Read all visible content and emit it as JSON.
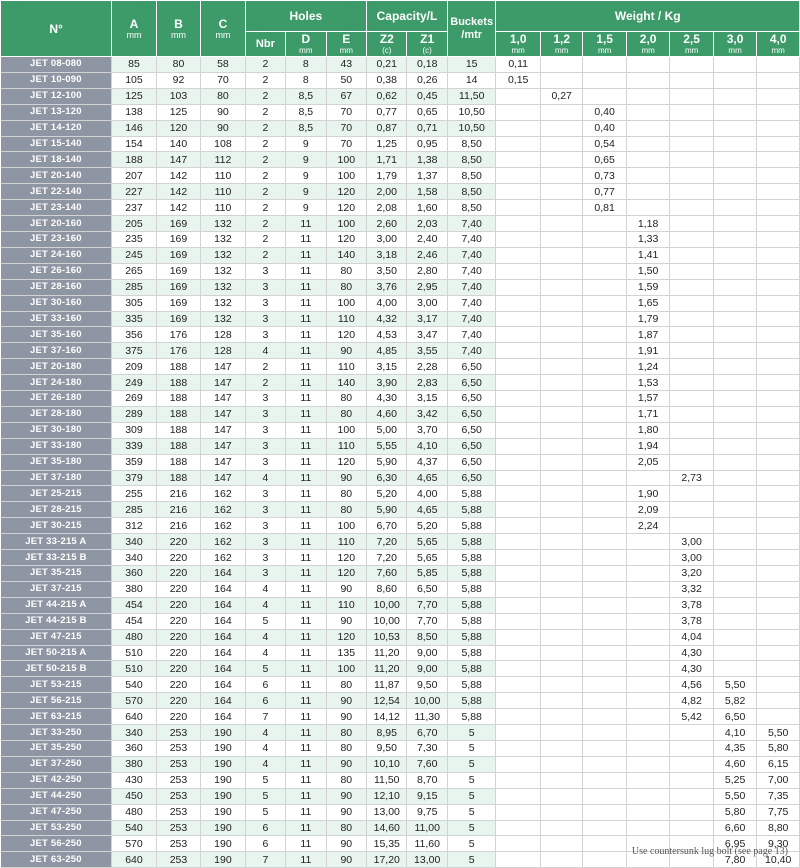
{
  "headers": {
    "no": "N°",
    "a": {
      "label": "A",
      "unit": "mm"
    },
    "b": {
      "label": "B",
      "unit": "mm"
    },
    "c": {
      "label": "C",
      "unit": "mm"
    },
    "holes": "Holes",
    "capacity": "Capacity/L",
    "buckets": "Buckets /mtr",
    "weight": "Weight / Kg",
    "nbr": "Nbr",
    "d": {
      "label": "D",
      "unit": "mm"
    },
    "e": {
      "label": "E",
      "unit": "mm"
    },
    "z2": {
      "label": "Z2",
      "unit": "(c)"
    },
    "z1": {
      "label": "Z1",
      "unit": "(c)"
    },
    "w10": {
      "label": "1,0",
      "unit": "mm"
    },
    "w12": {
      "label": "1,2",
      "unit": "mm"
    },
    "w15": {
      "label": "1,5",
      "unit": "mm"
    },
    "w20": {
      "label": "2,0",
      "unit": "mm"
    },
    "w25": {
      "label": "2,5",
      "unit": "mm"
    },
    "w30": {
      "label": "3,0",
      "unit": "mm"
    },
    "w40": {
      "label": "4,0",
      "unit": "mm"
    }
  },
  "rows": [
    [
      "JET 08-080",
      "85",
      "80",
      "58",
      "2",
      "8",
      "43",
      "0,21",
      "0,18",
      "15",
      "0,11",
      "",
      "",
      "",
      "",
      "",
      ""
    ],
    [
      "JET 10-090",
      "105",
      "92",
      "70",
      "2",
      "8",
      "50",
      "0,38",
      "0,26",
      "14",
      "0,15",
      "",
      "",
      "",
      "",
      "",
      ""
    ],
    [
      "JET 12-100",
      "125",
      "103",
      "80",
      "2",
      "8,5",
      "67",
      "0,62",
      "0,45",
      "11,50",
      "",
      "0,27",
      "",
      "",
      "",
      "",
      ""
    ],
    [
      "JET 13-120",
      "138",
      "125",
      "90",
      "2",
      "8,5",
      "70",
      "0,77",
      "0,65",
      "10,50",
      "",
      "",
      "0,40",
      "",
      "",
      "",
      ""
    ],
    [
      "JET 14-120",
      "146",
      "120",
      "90",
      "2",
      "8,5",
      "70",
      "0,87",
      "0,71",
      "10,50",
      "",
      "",
      "0,40",
      "",
      "",
      "",
      ""
    ],
    [
      "JET 15-140",
      "154",
      "140",
      "108",
      "2",
      "9",
      "70",
      "1,25",
      "0,95",
      "8,50",
      "",
      "",
      "0,54",
      "",
      "",
      "",
      ""
    ],
    [
      "JET 18-140",
      "188",
      "147",
      "112",
      "2",
      "9",
      "100",
      "1,71",
      "1,38",
      "8,50",
      "",
      "",
      "0,65",
      "",
      "",
      "",
      ""
    ],
    [
      "JET 20-140",
      "207",
      "142",
      "110",
      "2",
      "9",
      "100",
      "1,79",
      "1,37",
      "8,50",
      "",
      "",
      "0,73",
      "",
      "",
      "",
      ""
    ],
    [
      "JET 22-140",
      "227",
      "142",
      "110",
      "2",
      "9",
      "120",
      "2,00",
      "1,58",
      "8,50",
      "",
      "",
      "0,77",
      "",
      "",
      "",
      ""
    ],
    [
      "JET 23-140",
      "237",
      "142",
      "110",
      "2",
      "9",
      "120",
      "2,08",
      "1,60",
      "8,50",
      "",
      "",
      "0,81",
      "",
      "",
      "",
      ""
    ],
    [
      "JET 20-160",
      "205",
      "169",
      "132",
      "2",
      "11",
      "100",
      "2,60",
      "2,03",
      "7,40",
      "",
      "",
      "",
      "1,18",
      "",
      "",
      ""
    ],
    [
      "JET 23-160",
      "235",
      "169",
      "132",
      "2",
      "11",
      "120",
      "3,00",
      "2,40",
      "7,40",
      "",
      "",
      "",
      "1,33",
      "",
      "",
      ""
    ],
    [
      "JET 24-160",
      "245",
      "169",
      "132",
      "2",
      "11",
      "140",
      "3,18",
      "2,46",
      "7,40",
      "",
      "",
      "",
      "1,41",
      "",
      "",
      ""
    ],
    [
      "JET 26-160",
      "265",
      "169",
      "132",
      "3",
      "11",
      "80",
      "3,50",
      "2,80",
      "7,40",
      "",
      "",
      "",
      "1,50",
      "",
      "",
      ""
    ],
    [
      "JET 28-160",
      "285",
      "169",
      "132",
      "3",
      "11",
      "80",
      "3,76",
      "2,95",
      "7,40",
      "",
      "",
      "",
      "1,59",
      "",
      "",
      ""
    ],
    [
      "JET 30-160",
      "305",
      "169",
      "132",
      "3",
      "11",
      "100",
      "4,00",
      "3,00",
      "7,40",
      "",
      "",
      "",
      "1,65",
      "",
      "",
      ""
    ],
    [
      "JET 33-160",
      "335",
      "169",
      "132",
      "3",
      "11",
      "110",
      "4,32",
      "3,17",
      "7,40",
      "",
      "",
      "",
      "1,79",
      "",
      "",
      ""
    ],
    [
      "JET 35-160",
      "356",
      "176",
      "128",
      "3",
      "11",
      "120",
      "4,53",
      "3,47",
      "7,40",
      "",
      "",
      "",
      "1,87",
      "",
      "",
      ""
    ],
    [
      "JET 37-160",
      "375",
      "176",
      "128",
      "4",
      "11",
      "90",
      "4,85",
      "3,55",
      "7,40",
      "",
      "",
      "",
      "1,91",
      "",
      "",
      ""
    ],
    [
      "JET 20-180",
      "209",
      "188",
      "147",
      "2",
      "11",
      "110",
      "3,15",
      "2,28",
      "6,50",
      "",
      "",
      "",
      "1,24",
      "",
      "",
      ""
    ],
    [
      "JET 24-180",
      "249",
      "188",
      "147",
      "2",
      "11",
      "140",
      "3,90",
      "2,83",
      "6,50",
      "",
      "",
      "",
      "1,53",
      "",
      "",
      ""
    ],
    [
      "JET 26-180",
      "269",
      "188",
      "147",
      "3",
      "11",
      "80",
      "4,30",
      "3,15",
      "6,50",
      "",
      "",
      "",
      "1,57",
      "",
      "",
      ""
    ],
    [
      "JET 28-180",
      "289",
      "188",
      "147",
      "3",
      "11",
      "80",
      "4,60",
      "3,42",
      "6,50",
      "",
      "",
      "",
      "1,71",
      "",
      "",
      ""
    ],
    [
      "JET 30-180",
      "309",
      "188",
      "147",
      "3",
      "11",
      "100",
      "5,00",
      "3,70",
      "6,50",
      "",
      "",
      "",
      "1,80",
      "",
      "",
      ""
    ],
    [
      "JET 33-180",
      "339",
      "188",
      "147",
      "3",
      "11",
      "110",
      "5,55",
      "4,10",
      "6,50",
      "",
      "",
      "",
      "1,94",
      "",
      "",
      ""
    ],
    [
      "JET 35-180",
      "359",
      "188",
      "147",
      "3",
      "11",
      "120",
      "5,90",
      "4,37",
      "6,50",
      "",
      "",
      "",
      "2,05",
      "",
      "",
      ""
    ],
    [
      "JET 37-180",
      "379",
      "188",
      "147",
      "4",
      "11",
      "90",
      "6,30",
      "4,65",
      "6,50",
      "",
      "",
      "",
      "",
      "2,73",
      "",
      ""
    ],
    [
      "JET 25-215",
      "255",
      "216",
      "162",
      "3",
      "11",
      "80",
      "5,20",
      "4,00",
      "5,88",
      "",
      "",
      "",
      "1,90",
      "",
      "",
      ""
    ],
    [
      "JET 28-215",
      "285",
      "216",
      "162",
      "3",
      "11",
      "80",
      "5,90",
      "4,65",
      "5,88",
      "",
      "",
      "",
      "2,09",
      "",
      "",
      ""
    ],
    [
      "JET 30-215",
      "312",
      "216",
      "162",
      "3",
      "11",
      "100",
      "6,70",
      "5,20",
      "5,88",
      "",
      "",
      "",
      "2,24",
      "",
      "",
      ""
    ],
    [
      "JET 33-215 A",
      "340",
      "220",
      "162",
      "3",
      "11",
      "110",
      "7,20",
      "5,65",
      "5,88",
      "",
      "",
      "",
      "",
      "3,00",
      "",
      ""
    ],
    [
      "JET 33-215 B",
      "340",
      "220",
      "162",
      "3",
      "11",
      "120",
      "7,20",
      "5,65",
      "5,88",
      "",
      "",
      "",
      "",
      "3,00",
      "",
      ""
    ],
    [
      "JET 35-215",
      "360",
      "220",
      "164",
      "3",
      "11",
      "120",
      "7,60",
      "5,85",
      "5,88",
      "",
      "",
      "",
      "",
      "3,20",
      "",
      ""
    ],
    [
      "JET 37-215",
      "380",
      "220",
      "164",
      "4",
      "11",
      "90",
      "8,60",
      "6,50",
      "5,88",
      "",
      "",
      "",
      "",
      "3,32",
      "",
      ""
    ],
    [
      "JET 44-215 A",
      "454",
      "220",
      "164",
      "4",
      "11",
      "110",
      "10,00",
      "7,70",
      "5,88",
      "",
      "",
      "",
      "",
      "3,78",
      "",
      ""
    ],
    [
      "JET 44-215 B",
      "454",
      "220",
      "164",
      "5",
      "11",
      "90",
      "10,00",
      "7,70",
      "5,88",
      "",
      "",
      "",
      "",
      "3,78",
      "",
      ""
    ],
    [
      "JET 47-215",
      "480",
      "220",
      "164",
      "4",
      "11",
      "120",
      "10,53",
      "8,50",
      "5,88",
      "",
      "",
      "",
      "",
      "4,04",
      "",
      ""
    ],
    [
      "JET 50-215 A",
      "510",
      "220",
      "164",
      "4",
      "11",
      "135",
      "11,20",
      "9,00",
      "5,88",
      "",
      "",
      "",
      "",
      "4,30",
      "",
      ""
    ],
    [
      "JET 50-215 B",
      "510",
      "220",
      "164",
      "5",
      "11",
      "100",
      "11,20",
      "9,00",
      "5,88",
      "",
      "",
      "",
      "",
      "4,30",
      "",
      ""
    ],
    [
      "JET 53-215",
      "540",
      "220",
      "164",
      "6",
      "11",
      "80",
      "11,87",
      "9,50",
      "5,88",
      "",
      "",
      "",
      "",
      "4,56",
      "5,50",
      ""
    ],
    [
      "JET 56-215",
      "570",
      "220",
      "164",
      "6",
      "11",
      "90",
      "12,54",
      "10,00",
      "5,88",
      "",
      "",
      "",
      "",
      "4,82",
      "5,82",
      ""
    ],
    [
      "JET 63-215",
      "640",
      "220",
      "164",
      "7",
      "11",
      "90",
      "14,12",
      "11,30",
      "5,88",
      "",
      "",
      "",
      "",
      "5,42",
      "6,50",
      ""
    ],
    [
      "JET 33-250",
      "340",
      "253",
      "190",
      "4",
      "11",
      "80",
      "8,95",
      "6,70",
      "5",
      "",
      "",
      "",
      "",
      "",
      "4,10",
      "5,50"
    ],
    [
      "JET 35-250",
      "360",
      "253",
      "190",
      "4",
      "11",
      "80",
      "9,50",
      "7,30",
      "5",
      "",
      "",
      "",
      "",
      "",
      "4,35",
      "5,80"
    ],
    [
      "JET 37-250",
      "380",
      "253",
      "190",
      "4",
      "11",
      "90",
      "10,10",
      "7,60",
      "5",
      "",
      "",
      "",
      "",
      "",
      "4,60",
      "6,15"
    ],
    [
      "JET 42-250",
      "430",
      "253",
      "190",
      "5",
      "11",
      "80",
      "11,50",
      "8,70",
      "5",
      "",
      "",
      "",
      "",
      "",
      "5,25",
      "7,00"
    ],
    [
      "JET 44-250",
      "450",
      "253",
      "190",
      "5",
      "11",
      "90",
      "12,10",
      "9,15",
      "5",
      "",
      "",
      "",
      "",
      "",
      "5,50",
      "7,35"
    ],
    [
      "JET 47-250",
      "480",
      "253",
      "190",
      "5",
      "11",
      "90",
      "13,00",
      "9,75",
      "5",
      "",
      "",
      "",
      "",
      "",
      "5,80",
      "7,75"
    ],
    [
      "JET 53-250",
      "540",
      "253",
      "190",
      "6",
      "11",
      "80",
      "14,60",
      "11,00",
      "5",
      "",
      "",
      "",
      "",
      "",
      "6,60",
      "8,80"
    ],
    [
      "JET 56-250",
      "570",
      "253",
      "190",
      "6",
      "11",
      "90",
      "15,35",
      "11,60",
      "5",
      "",
      "",
      "",
      "",
      "",
      "6,95",
      "9,30"
    ],
    [
      "JET 63-250",
      "640",
      "253",
      "190",
      "7",
      "11",
      "90",
      "17,20",
      "13,00",
      "5",
      "",
      "",
      "",
      "",
      "",
      "7,80",
      "10,40"
    ]
  ],
  "footnote": "Use countersunk lug bolt (see page 13)"
}
